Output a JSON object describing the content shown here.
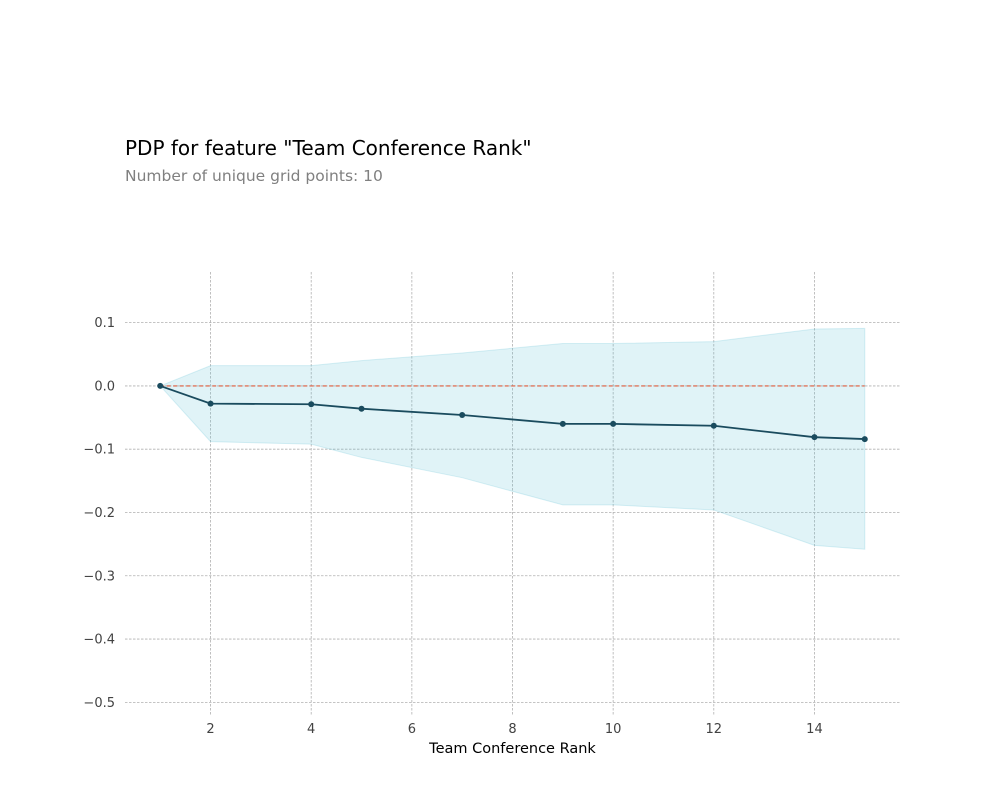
{
  "title": "PDP for feature \"Team Conference Rank\"",
  "subtitle": "Number of unique grid points: 10",
  "chart_data": {
    "type": "line",
    "xlabel": "Team Conference Rank",
    "ylabel": "",
    "xlim": [
      0.3,
      15.7
    ],
    "ylim": [
      -0.52,
      0.18
    ],
    "x_ticks": [
      2,
      4,
      6,
      8,
      10,
      12,
      14
    ],
    "x_tick_labels": [
      "2",
      "4",
      "6",
      "8",
      "10",
      "12",
      "14"
    ],
    "y_ticks": [
      0.1,
      0.0,
      -0.1,
      -0.2,
      -0.3,
      -0.4,
      -0.5
    ],
    "y_tick_labels": [
      "0.1",
      "0.0",
      "−0.1",
      "−0.2",
      "−0.3",
      "−0.4",
      "−0.5"
    ],
    "grid": true,
    "x": [
      1,
      2,
      4,
      5,
      7,
      9,
      10,
      12,
      14,
      15
    ],
    "series": [
      {
        "values": [
          0.0,
          -0.028,
          -0.029,
          -0.036,
          -0.046,
          -0.06,
          -0.06,
          -0.063,
          -0.081,
          -0.084
        ],
        "color": "#1a4b5e",
        "marker": "circle"
      }
    ],
    "band": {
      "upper": [
        0.0,
        0.032,
        0.032,
        0.04,
        0.052,
        0.067,
        0.067,
        0.07,
        0.09,
        0.091
      ],
      "lower": [
        0.0,
        -0.088,
        -0.092,
        -0.113,
        -0.145,
        -0.188,
        -0.188,
        -0.196,
        -0.252,
        -0.258
      ],
      "color": "#66c2d7"
    },
    "baseline": {
      "value": 0.0,
      "color": "#e05a3a",
      "style": "dashed"
    }
  }
}
